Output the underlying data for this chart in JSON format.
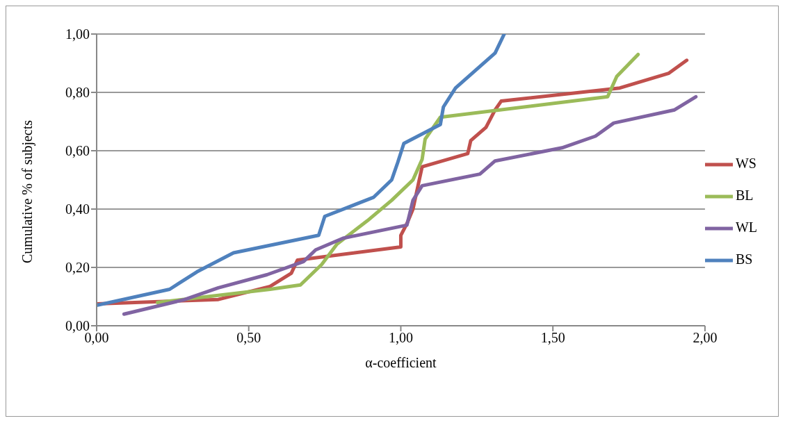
{
  "chart_data": {
    "type": "line",
    "xlabel": "α-coefficient",
    "ylabel": "Cumulative   % of subjects",
    "xlim": [
      0,
      2
    ],
    "ylim": [
      0,
      1
    ],
    "xticks": [
      {
        "value": 0,
        "label": "0,00"
      },
      {
        "value": 0.5,
        "label": "0,50"
      },
      {
        "value": 1,
        "label": "1,00"
      },
      {
        "value": 1.5,
        "label": "1,50"
      },
      {
        "value": 2,
        "label": "2,00"
      }
    ],
    "yticks": [
      {
        "value": 0,
        "label": "0,00"
      },
      {
        "value": 0.2,
        "label": "0,20"
      },
      {
        "value": 0.4,
        "label": "0,40"
      },
      {
        "value": 0.6,
        "label": "0,60"
      },
      {
        "value": 0.8,
        "label": "0,80"
      },
      {
        "value": 1,
        "label": "1,00"
      }
    ],
    "grid": "y",
    "legend": "right",
    "marker": "none",
    "line_style": "solid",
    "series": [
      {
        "name": "WS",
        "color": "#c0504d",
        "x": [
          0,
          0.4,
          0.57,
          0.64,
          0.66,
          1.0,
          1.0,
          1.02,
          1.04,
          1.07,
          1.22,
          1.23,
          1.28,
          1.31,
          1.33,
          1.72,
          1.88,
          1.94
        ],
        "values": [
          0.075,
          0.09,
          0.135,
          0.18,
          0.225,
          0.27,
          0.31,
          0.35,
          0.4,
          0.545,
          0.59,
          0.635,
          0.68,
          0.74,
          0.77,
          0.815,
          0.865,
          0.91
        ]
      },
      {
        "name": "BL",
        "color": "#9bbb59",
        "x": [
          0.2,
          0.57,
          0.67,
          0.74,
          0.79,
          0.89,
          0.97,
          1.04,
          1.07,
          1.08,
          1.13,
          1.68,
          1.71,
          1.78
        ],
        "values": [
          0.08,
          0.125,
          0.14,
          0.21,
          0.28,
          0.36,
          0.43,
          0.5,
          0.57,
          0.64,
          0.715,
          0.785,
          0.855,
          0.93
        ]
      },
      {
        "name": "WL",
        "color": "#8064a2",
        "x": [
          0.09,
          0.29,
          0.4,
          0.56,
          0.68,
          0.72,
          0.81,
          1.02,
          1.04,
          1.07,
          1.26,
          1.31,
          1.53,
          1.64,
          1.7,
          1.9,
          1.97
        ],
        "values": [
          0.04,
          0.09,
          0.13,
          0.175,
          0.22,
          0.26,
          0.3,
          0.345,
          0.43,
          0.48,
          0.52,
          0.565,
          0.61,
          0.65,
          0.695,
          0.74,
          0.785
        ]
      },
      {
        "name": "BS",
        "color": "#4f81bd",
        "x": [
          0,
          0.24,
          0.33,
          0.45,
          0.73,
          0.75,
          0.91,
          0.97,
          0.99,
          1.01,
          1.13,
          1.14,
          1.18,
          1.31,
          1.34
        ],
        "values": [
          0.07,
          0.125,
          0.185,
          0.25,
          0.31,
          0.375,
          0.44,
          0.5,
          0.56,
          0.625,
          0.69,
          0.75,
          0.815,
          0.935,
          1.0
        ]
      }
    ]
  }
}
